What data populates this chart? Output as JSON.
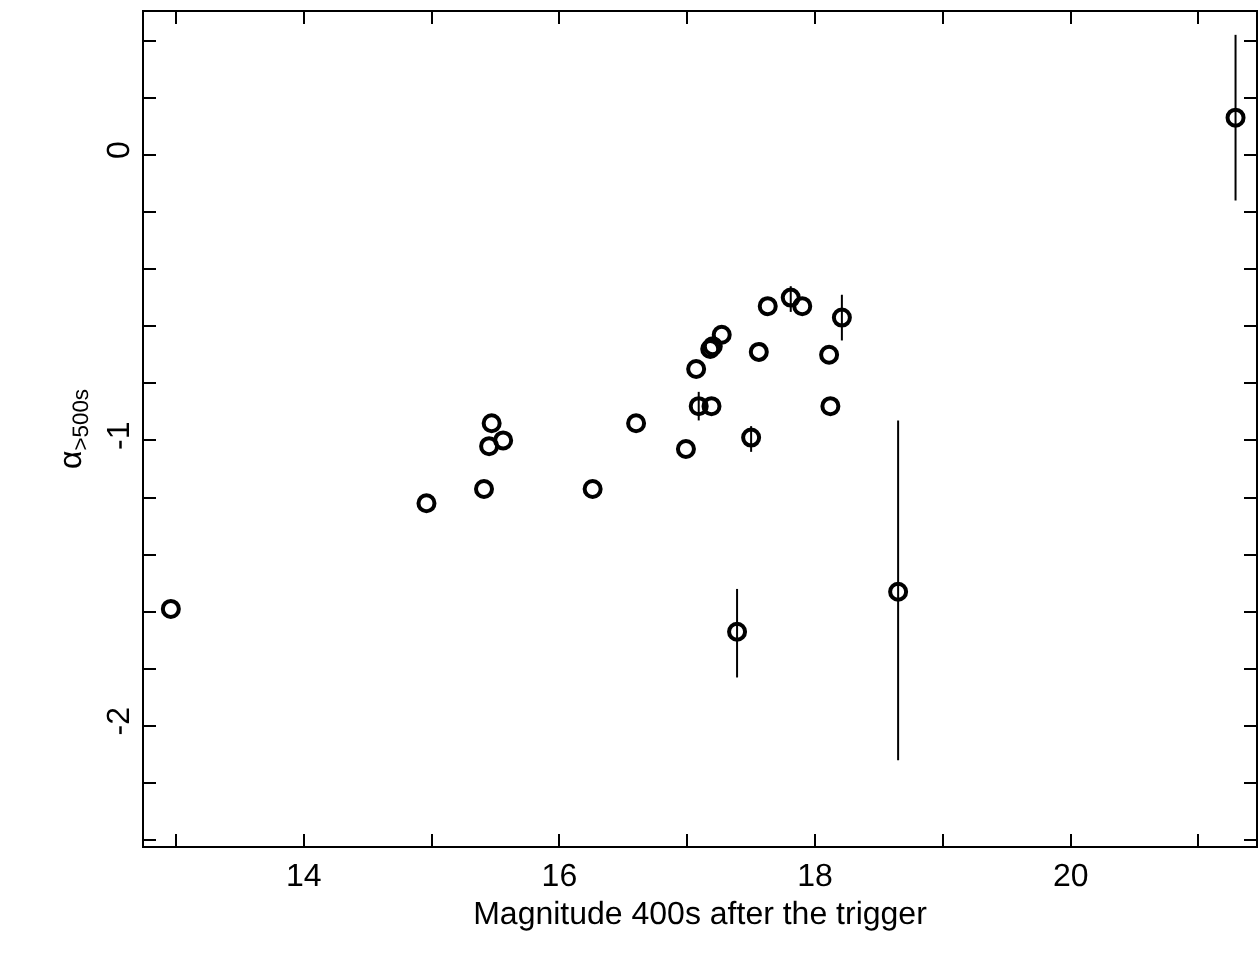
{
  "chart_data": {
    "type": "scatter",
    "xlabel": "Magnitude 400s after the trigger",
    "ylabel": "α$_{>500s}$",
    "x": [
      21.29,
      17.63,
      17.81,
      17.9,
      18.21,
      17.27,
      17.18,
      17.2,
      17.56,
      18.11,
      17.07,
      17.09,
      17.19,
      18.12,
      15.47,
      16.6,
      15.56,
      15.45,
      17.5,
      16.99,
      15.41,
      16.26,
      14.96,
      18.65,
      17.39,
      12.96
    ],
    "values": [
      0.13,
      -0.53,
      -0.5,
      -0.53,
      -0.57,
      -0.63,
      -0.68,
      -0.67,
      -0.69,
      -0.7,
      -0.75,
      -0.88,
      -0.88,
      -0.88,
      -0.94,
      -0.94,
      -1.0,
      -1.02,
      -0.99,
      -1.03,
      -1.17,
      -1.17,
      -1.22,
      -1.53,
      -1.67,
      -1.59
    ],
    "errors": [
      [
        -0.16,
        0.42
      ],
      null,
      [
        -0.55,
        -0.46
      ],
      null,
      [
        -0.65,
        -0.49
      ],
      null,
      null,
      null,
      null,
      null,
      null,
      [
        -0.93,
        -0.83
      ],
      null,
      null,
      null,
      null,
      null,
      null,
      [
        -1.04,
        -0.95
      ],
      null,
      null,
      null,
      null,
      [
        -2.12,
        -0.93
      ],
      [
        -1.83,
        -1.52
      ],
      null
    ],
    "color": "#000000",
    "marker": "circle",
    "xlim": [
      12.75,
      21.45
    ],
    "ylim": [
      -2.42,
      0.5
    ],
    "xticks": [
      {
        "value": 13,
        "label": null
      },
      14,
      {
        "value": 15,
        "label": null
      },
      16,
      {
        "value": 17,
        "label": null
      },
      18,
      {
        "value": 19,
        "label": null
      },
      20,
      {
        "value": 21,
        "label": null
      }
    ],
    "yticks": [
      {
        "value": -2.4,
        "label": null
      },
      {
        "value": -2.2,
        "label": null
      },
      -2,
      {
        "value": -1.8,
        "label": null
      },
      {
        "value": -1.6,
        "label": null
      },
      {
        "value": -1.4,
        "label": null
      },
      {
        "value": -1.2,
        "label": null
      },
      -1,
      {
        "value": -0.8,
        "label": null
      },
      {
        "value": -0.6,
        "label": null
      },
      {
        "value": -0.4,
        "label": null
      },
      {
        "value": -0.2,
        "label": null
      },
      0,
      {
        "value": 0.2,
        "label": null
      },
      {
        "value": 0.4,
        "label": null
      }
    ],
    "line_style": "solid"
  }
}
